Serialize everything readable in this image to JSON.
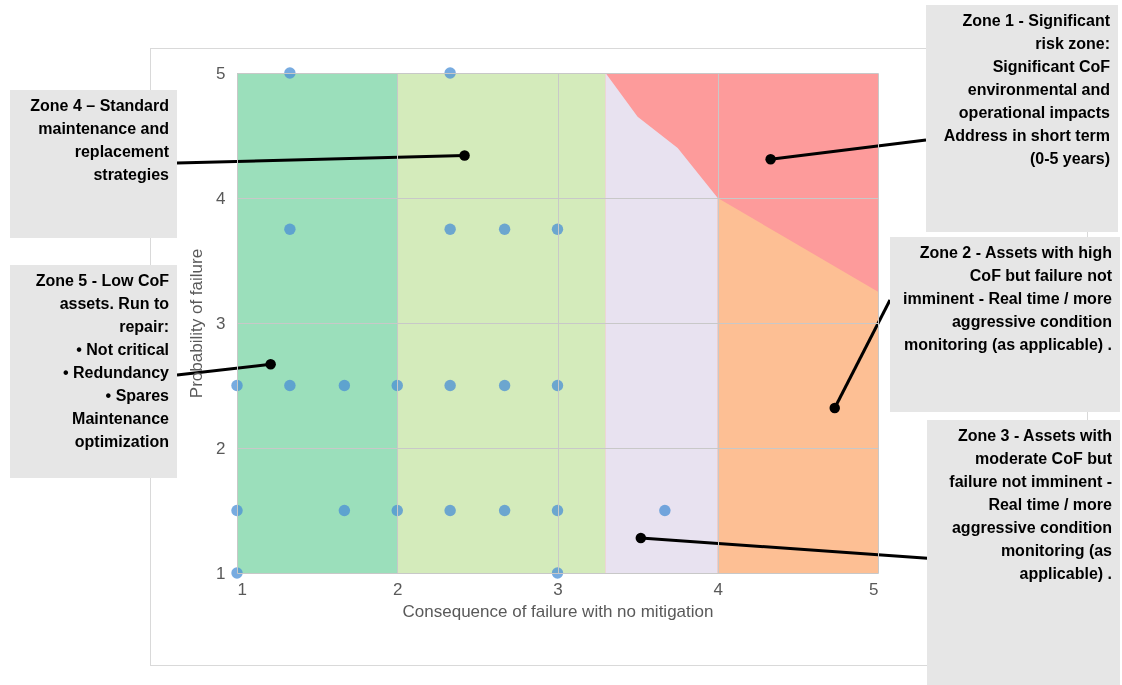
{
  "chart_data": {
    "type": "scatter",
    "xlabel": "Consequence of failure with no mitigation",
    "ylabel": "Probability of failure",
    "xlim": [
      1,
      5
    ],
    "ylim": [
      1,
      5
    ],
    "xticks": [
      1,
      2,
      3,
      4,
      5
    ],
    "yticks": [
      1,
      2,
      3,
      4,
      5
    ],
    "grid": true,
    "marker": "circle",
    "bands": [
      {
        "axis": "x",
        "from": 1,
        "to": 2,
        "color": "#9bdfbb"
      },
      {
        "axis": "x",
        "from": 2,
        "to": 3.3,
        "color": "#d4ebbb"
      },
      {
        "axis": "x",
        "from": 3.3,
        "to": 5,
        "color": "#fd9b9b"
      }
    ],
    "series": [
      {
        "type": "area",
        "marker": "none",
        "color": "#e8e2f0",
        "x": [
          3.3,
          3.5,
          3.75,
          4
        ],
        "values": [
          5,
          4.65,
          4.4,
          4
        ]
      },
      {
        "type": "area",
        "marker": "none",
        "color": "#fdbf94",
        "x": [
          4,
          4.4,
          4.8,
          5
        ],
        "values": [
          4,
          3.7,
          3.4,
          3.25
        ]
      },
      {
        "color": "#4a8fd6",
        "x": [
          1.33,
          2.33,
          1.33,
          2.33,
          2.67,
          3,
          1,
          1.33,
          1.67,
          2,
          2.33,
          2.67,
          3,
          1,
          1.67,
          2,
          2.33,
          2.67,
          3,
          3.67,
          1,
          3
        ],
        "values": [
          5,
          5,
          3.75,
          3.75,
          3.75,
          3.75,
          2.5,
          2.5,
          2.5,
          2.5,
          2.5,
          2.5,
          2.5,
          1.5,
          1.5,
          1.5,
          1.5,
          1.5,
          1.5,
          1.5,
          1,
          1
        ]
      }
    ],
    "annotations": [
      {
        "text": "Zone 4 – Standard maintenance and replacement strategies",
        "x": 2.42,
        "y": 4.34
      },
      {
        "text": "Zone 5 - Low CoF assets. Run to repair:\n• Not critical\n• Redundancy\n• Spares\nMaintenance optimization",
        "x": 1.21,
        "y": 2.67
      },
      {
        "text": "Zone 1 - Significant risk zone:\nSignificant CoF environmental and operational impacts\nAddress in short term (0-5 years)",
        "x": 4.33,
        "y": 4.31
      },
      {
        "text": "Zone 2 - Assets with high CoF but failure not imminent - Real time / more aggressive condition monitoring (as applicable) .",
        "x": 4.73,
        "y": 2.32
      },
      {
        "text": "Zone 3 - Assets with moderate CoF but failure not imminent - Real time / more aggressive condition monitoring (as applicable) .",
        "x": 3.52,
        "y": 1.28
      }
    ]
  }
}
